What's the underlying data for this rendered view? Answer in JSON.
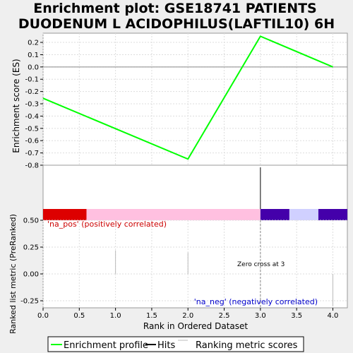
{
  "chart_data": {
    "type": "line",
    "title_lines": [
      "Enrichment plot: GSE18741 PATIENTS",
      "DUODENUM L ACIDOPHILUS(LAFTIL10) 6H"
    ],
    "top_panel": {
      "ylabel": "Enrichment score (ES)",
      "ylim": [
        -0.8,
        0.275
      ],
      "yticks": [
        0.2,
        0.1,
        0.0,
        -0.1,
        -0.2,
        -0.3,
        -0.4,
        -0.5,
        -0.6,
        -0.7,
        -0.8
      ],
      "ytick_labels": [
        "0.2",
        "0.1",
        "0.0",
        "-0.1",
        "-0.2",
        "-0.3",
        "-0.4",
        "-0.5",
        "-0.6",
        "-0.7",
        "-0.8"
      ],
      "grid": true,
      "series": [
        {
          "name": "Enrichment profile",
          "color": "#00ff00",
          "x": [
            0,
            2,
            3,
            4
          ],
          "y": [
            -0.255,
            -0.75,
            0.25,
            0.0
          ]
        }
      ]
    },
    "hits": {
      "positions": [
        3
      ],
      "color": "#000000"
    },
    "color_bar": [
      {
        "from": 0.0,
        "to": 0.6,
        "color": "#dd0000"
      },
      {
        "from": 0.6,
        "to": 3.0,
        "color": "#ffc0e0"
      },
      {
        "from": 3.0,
        "to": 3.4,
        "color": "#4400aa"
      },
      {
        "from": 3.4,
        "to": 3.8,
        "color": "#d0d0ff"
      },
      {
        "from": 3.8,
        "to": 4.2,
        "color": "#4400aa"
      }
    ],
    "bottom_panel": {
      "ylabel": "Ranked list metric (PreRanked)",
      "ylim": [
        -0.3,
        0.6
      ],
      "yticks": [
        0.5,
        0.25,
        0.0,
        -0.25
      ],
      "ytick_labels": [
        "0.50",
        "0.25",
        "0.00",
        "-0.25"
      ],
      "metric_scores": {
        "x": [
          1,
          2,
          4
        ],
        "y": [
          0.22,
          0.2,
          -0.3
        ],
        "color": "#bbbbbb"
      },
      "zero_cross_x": 3,
      "annotations": {
        "pos": "'na_pos' (positively correlated)",
        "neg": "'na_neg' (negatively correlated)",
        "zero": "Zero cross at 3"
      }
    },
    "x_axis": {
      "label": "Rank in Ordered Dataset",
      "xlim": [
        0,
        4.2
      ],
      "xticks": [
        0,
        0.5,
        1,
        1.5,
        2,
        2.5,
        3,
        3.5,
        4
      ],
      "xtick_labels": [
        "0.0",
        "0.5",
        "1.0",
        "1.5",
        "2.0",
        "2.5",
        "3.0",
        "3.5",
        "4.0"
      ]
    },
    "legend": {
      "placement": "bottom",
      "items": [
        {
          "label": "Enrichment profile",
          "color": "#00ff00"
        },
        {
          "label": "Hits",
          "color": "#000000"
        },
        {
          "label": "Ranking metric scores",
          "color": "#bbbbbb"
        }
      ]
    },
    "colors": {
      "pos_annotation": "#cc0000",
      "neg_annotation": "#0000cc",
      "zero_line": "#888888",
      "grid": "#dddddd"
    }
  }
}
